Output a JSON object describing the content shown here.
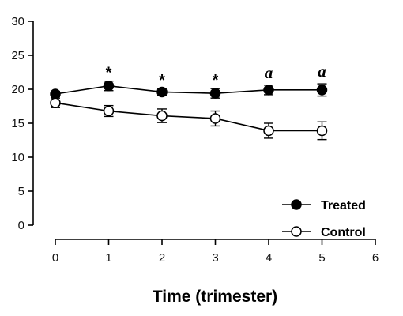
{
  "chart_data": {
    "type": "line",
    "title": "",
    "xlabel": "Time (trimester)",
    "ylabel": "",
    "xlim": [
      0,
      6
    ],
    "ylim": [
      0,
      30
    ],
    "x_ticks": [
      0,
      1,
      2,
      3,
      4,
      5,
      6
    ],
    "y_ticks": [
      0,
      5,
      10,
      15,
      20,
      25,
      30
    ],
    "grid": false,
    "legend_position": "bottom-right",
    "series": [
      {
        "name": "Treated",
        "marker": "filled-circle",
        "x": [
          0,
          1,
          2,
          3,
          4,
          5
        ],
        "values": [
          19.3,
          20.5,
          19.6,
          19.4,
          19.9,
          19.9
        ],
        "error": [
          0.4,
          0.7,
          0.5,
          0.7,
          0.7,
          0.9
        ]
      },
      {
        "name": "Control",
        "marker": "open-circle",
        "x": [
          0,
          1,
          2,
          3,
          4,
          5
        ],
        "values": [
          18.0,
          16.8,
          16.1,
          15.7,
          13.9,
          13.9
        ],
        "error": [
          0.7,
          0.8,
          1.0,
          1.1,
          1.1,
          1.3
        ]
      }
    ],
    "annotations": [
      {
        "x": 1,
        "text": "*"
      },
      {
        "x": 2,
        "text": "*"
      },
      {
        "x": 3,
        "text": "*"
      },
      {
        "x": 4,
        "text": "a"
      },
      {
        "x": 5,
        "text": "a"
      }
    ]
  }
}
